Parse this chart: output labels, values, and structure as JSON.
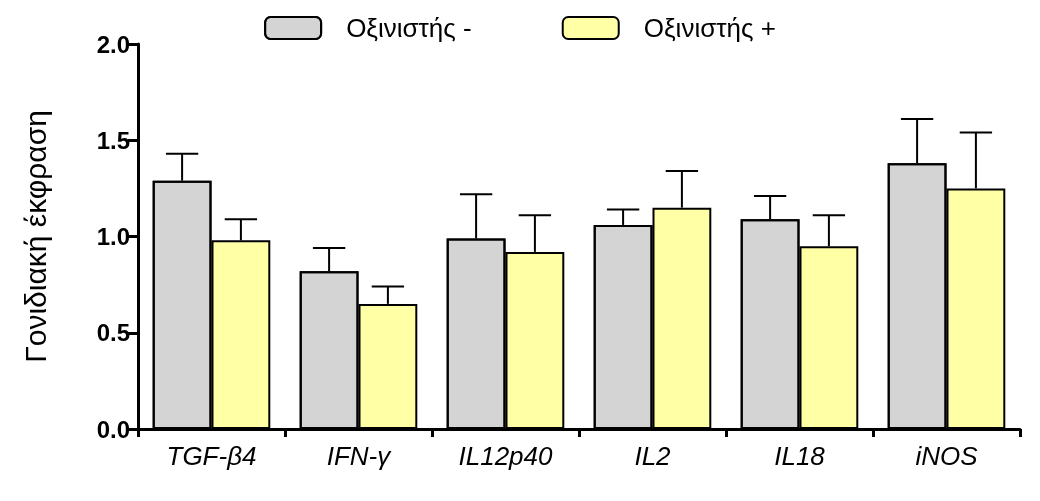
{
  "chart_data": {
    "type": "bar",
    "ylabel": "Γονιδιακή έκφραση",
    "categories": [
      "TGF-β4",
      "IFN-γ",
      "IL12p40",
      "IL2",
      "IL18",
      "iNOS"
    ],
    "series": [
      {
        "name": "Οξινιστής -",
        "color": "#d4d4d4",
        "values": [
          1.29,
          0.82,
          0.99,
          1.06,
          1.09,
          1.38
        ],
        "errors": [
          [
            1.29,
            1.43
          ],
          [
            0.82,
            0.94
          ],
          [
            0.99,
            1.22
          ],
          [
            1.06,
            1.14
          ],
          [
            1.09,
            1.21
          ],
          [
            1.38,
            1.61
          ]
        ]
      },
      {
        "name": "Οξινιστής +",
        "color": "#ffffa6",
        "values": [
          0.98,
          0.65,
          0.92,
          1.15,
          0.95,
          1.25
        ],
        "errors": [
          [
            0.98,
            1.09
          ],
          [
            0.65,
            0.74
          ],
          [
            0.92,
            1.11
          ],
          [
            1.15,
            1.34
          ],
          [
            0.95,
            1.11
          ],
          [
            1.25,
            1.54
          ]
        ]
      }
    ],
    "ylim": [
      0,
      2
    ],
    "yticks": [
      {
        "value": 0,
        "label": "0.0"
      },
      0.5,
      {
        "value": 1,
        "label": "1.0"
      },
      1.5,
      {
        "value": 2,
        "label": "2.0"
      }
    ],
    "legend": "top",
    "grid": false
  }
}
